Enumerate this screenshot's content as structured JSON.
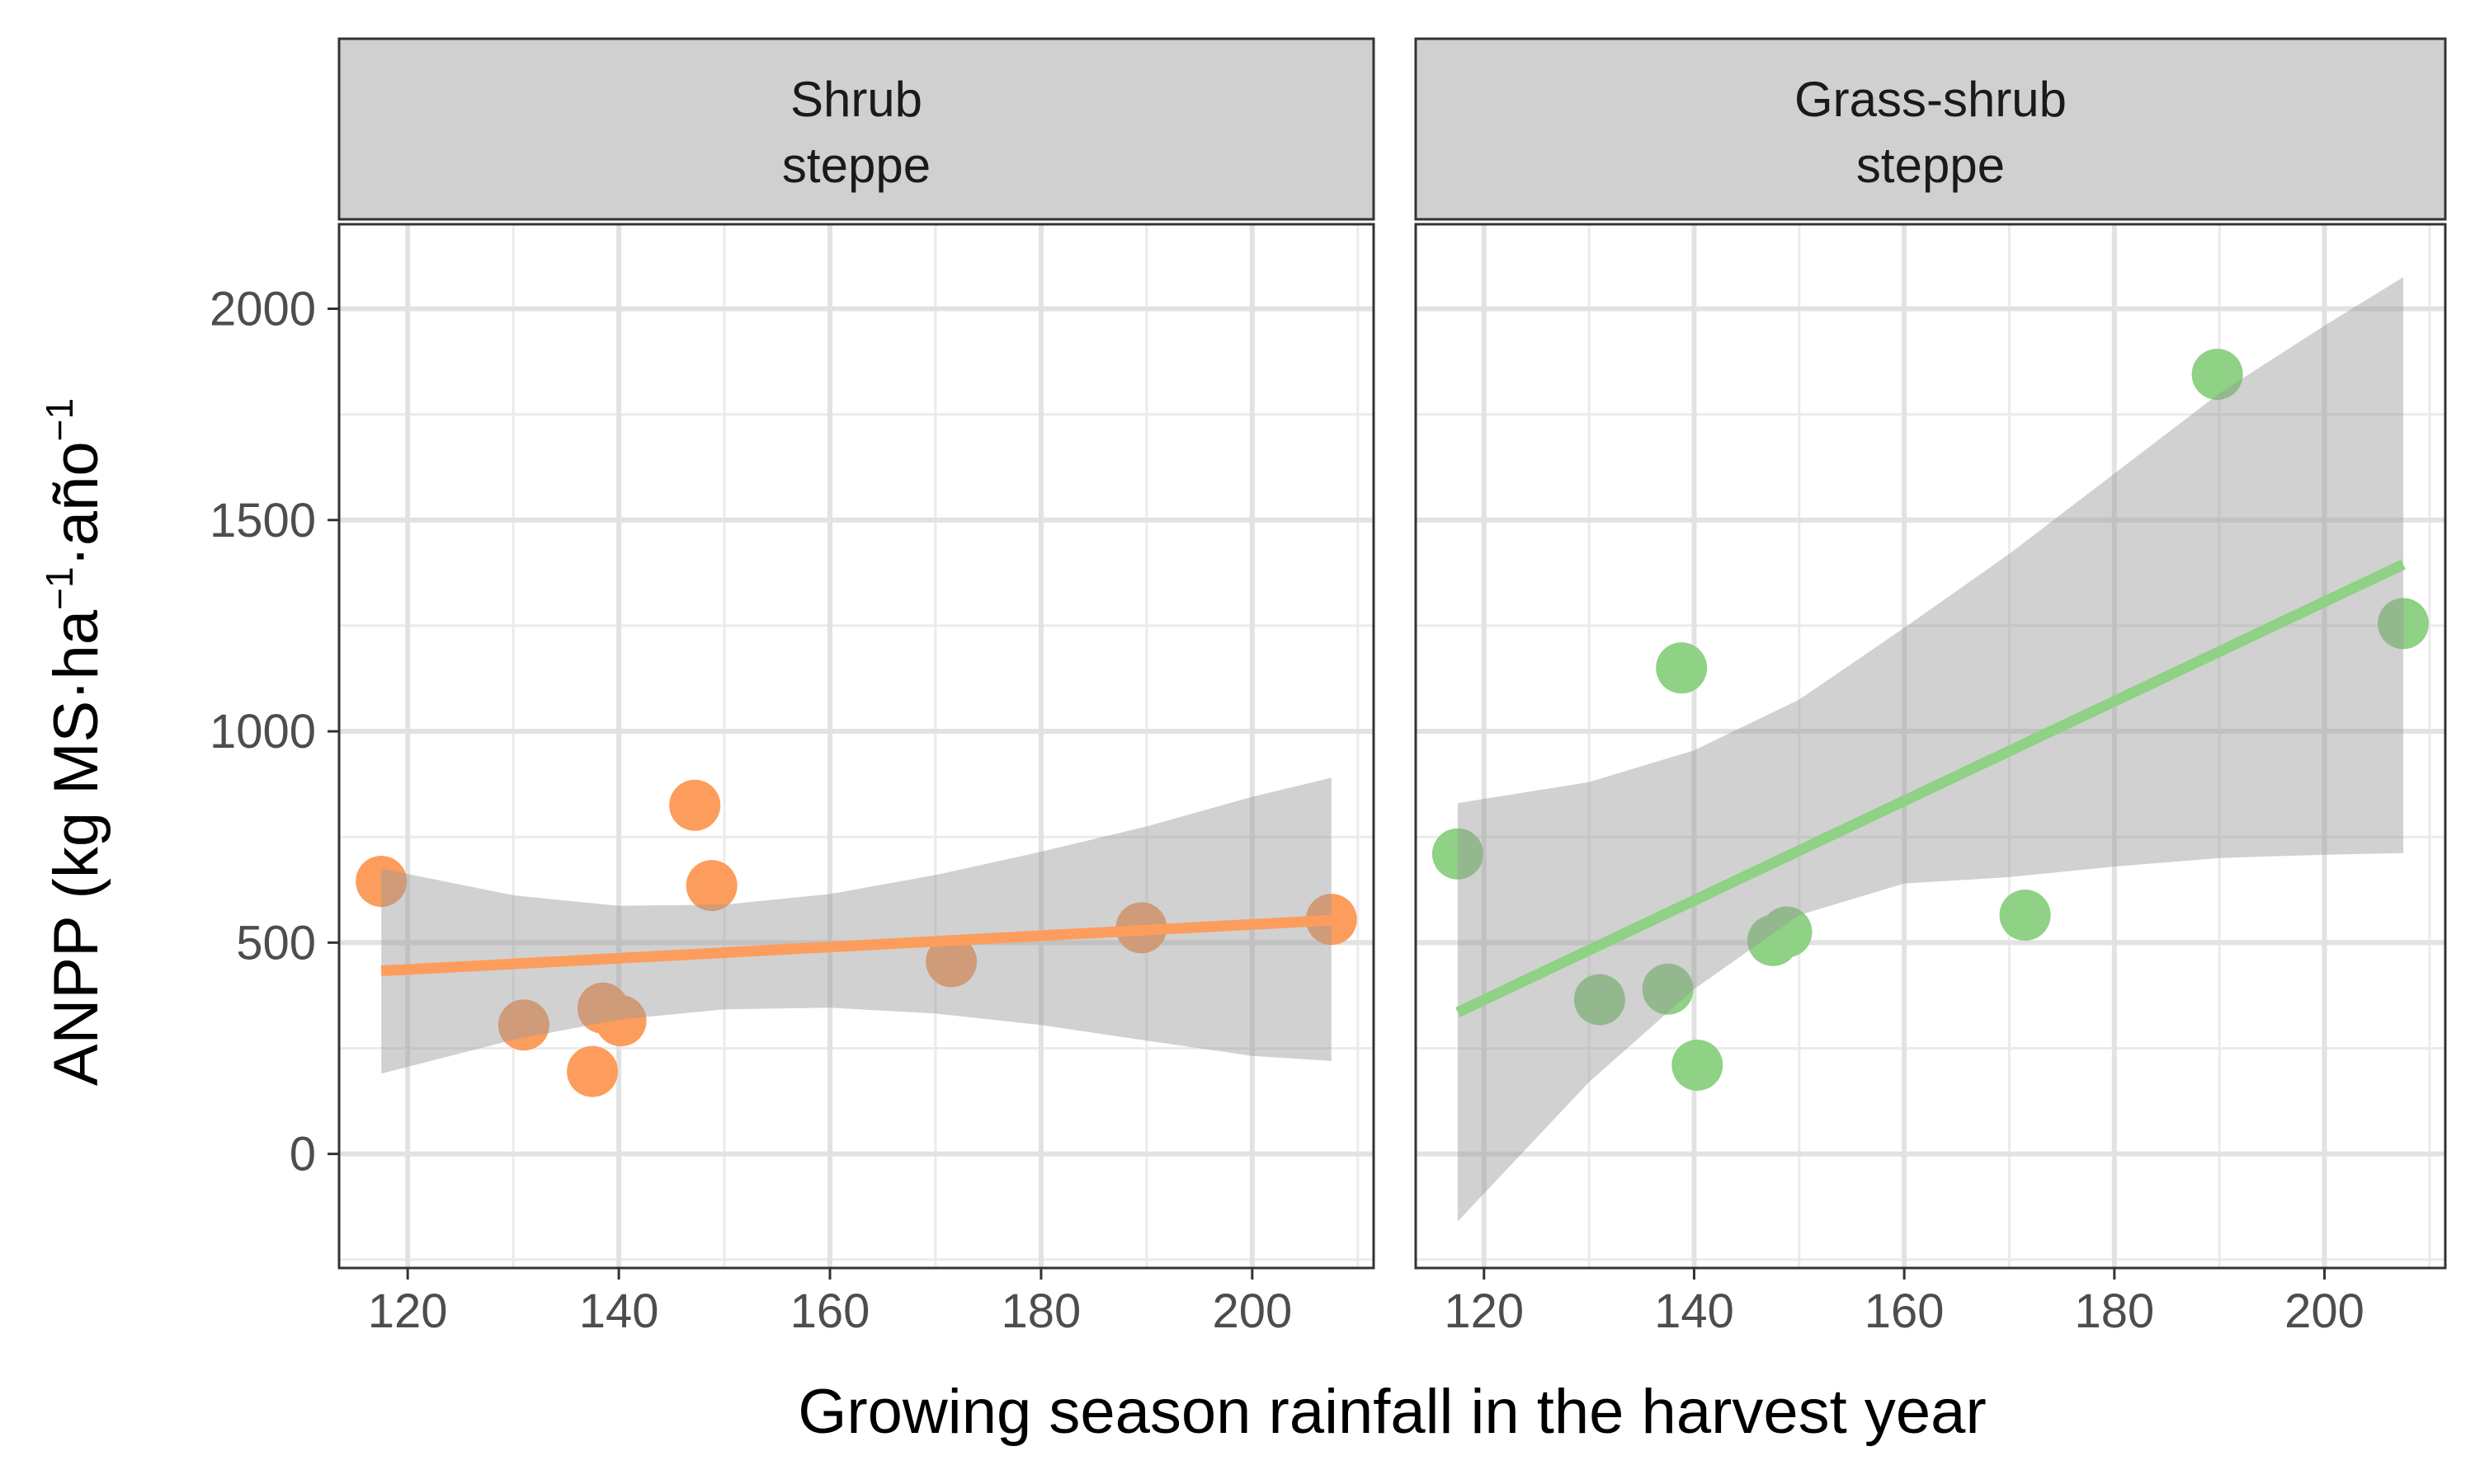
{
  "chart_data": {
    "type": "scatter",
    "xlabel": "Growing season rainfall in the harvest year",
    "ylabel": {
      "parts": [
        {
          "text": "ANPP (kg MS·ha",
          "sup": false
        },
        {
          "text": "−1",
          "sup": true
        },
        {
          "text": "·año",
          "sup": false
        },
        {
          "text": "−1",
          "sup": true
        }
      ]
    },
    "xlim": [
      113.5,
      211.5
    ],
    "ylim": [
      -270,
      2200
    ],
    "x_ticks": [
      120,
      140,
      160,
      180,
      200
    ],
    "x_tick_labels": [
      "120",
      "140",
      "160",
      "180",
      "200"
    ],
    "y_ticks": [
      0,
      500,
      1000,
      1500,
      2000
    ],
    "y_tick_labels": [
      "0",
      "500",
      "1000",
      "1500",
      "2000"
    ],
    "grid": true,
    "legend": "none",
    "panels": [
      {
        "strip_label": [
          "Shrub",
          "steppe"
        ],
        "color": "#fc9d5d",
        "points": [
          {
            "x": 117.5,
            "y": 645
          },
          {
            "x": 131,
            "y": 305
          },
          {
            "x": 137.5,
            "y": 195
          },
          {
            "x": 138.5,
            "y": 345
          },
          {
            "x": 140.2,
            "y": 315
          },
          {
            "x": 147.2,
            "y": 825
          },
          {
            "x": 148.8,
            "y": 635
          },
          {
            "x": 171.5,
            "y": 455
          },
          {
            "x": 189.5,
            "y": 535
          },
          {
            "x": 207.5,
            "y": 555
          }
        ],
        "fit": {
          "x": [
            117.5,
            207.5
          ],
          "y": [
            433,
            553
          ]
        },
        "ci_band": {
          "x": [
            117.5,
            130,
            140,
            150,
            160,
            170,
            180,
            190,
            200,
            207.5
          ],
          "lower": [
            190,
            270,
            318,
            342,
            346,
            332,
            305,
            268,
            232,
            220
          ],
          "upper": [
            675,
            612,
            587,
            590,
            615,
            660,
            715,
            775,
            845,
            890
          ]
        }
      },
      {
        "strip_label": [
          "Grass-shrub",
          "steppe"
        ],
        "color": "#8fd185",
        "points": [
          {
            "x": 117.5,
            "y": 710
          },
          {
            "x": 131,
            "y": 365
          },
          {
            "x": 137.5,
            "y": 390
          },
          {
            "x": 138.8,
            "y": 1150
          },
          {
            "x": 140.3,
            "y": 210
          },
          {
            "x": 147.5,
            "y": 505
          },
          {
            "x": 148.8,
            "y": 525
          },
          {
            "x": 171.5,
            "y": 565
          },
          {
            "x": 189.8,
            "y": 1845
          },
          {
            "x": 207.5,
            "y": 1255
          }
        ],
        "fit": {
          "x": [
            117.5,
            207.5
          ],
          "y": [
            335,
            1395
          ]
        },
        "ci_band": {
          "x": [
            117.5,
            130,
            140,
            150,
            160,
            170,
            180,
            190,
            200,
            207.5
          ],
          "lower": [
            -160,
            170,
            390,
            565,
            640,
            655,
            680,
            700,
            708,
            712
          ],
          "upper": [
            830,
            880,
            955,
            1075,
            1245,
            1420,
            1610,
            1800,
            1960,
            2075
          ]
        }
      }
    ]
  }
}
